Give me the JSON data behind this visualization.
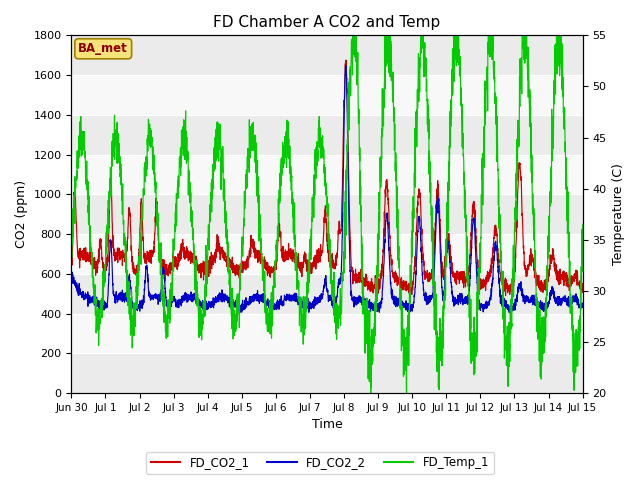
{
  "title": "FD Chamber A CO2 and Temp",
  "xlabel": "Time",
  "ylabel_left": "CO2 (ppm)",
  "ylabel_right": "Temperature (C)",
  "co2_ylim": [
    0,
    1800
  ],
  "temp_ylim": [
    20,
    55
  ],
  "annotation_text": "BA_met",
  "legend_labels": [
    "FD_CO2_1",
    "FD_CO2_2",
    "FD_Temp_1"
  ],
  "legend_colors": [
    "#cc0000",
    "#0000cc",
    "#00cc00"
  ],
  "bg_bands": [
    {
      "ymin": 0,
      "ymax": 200,
      "color": "#ebebeb"
    },
    {
      "ymin": 200,
      "ymax": 400,
      "color": "#f8f8f8"
    },
    {
      "ymin": 400,
      "ymax": 600,
      "color": "#ebebeb"
    },
    {
      "ymin": 600,
      "ymax": 800,
      "color": "#f8f8f8"
    },
    {
      "ymin": 800,
      "ymax": 1000,
      "color": "#ebebeb"
    },
    {
      "ymin": 1000,
      "ymax": 1200,
      "color": "#f8f8f8"
    },
    {
      "ymin": 1200,
      "ymax": 1400,
      "color": "#ebebeb"
    },
    {
      "ymin": 1400,
      "ymax": 1600,
      "color": "#f8f8f8"
    },
    {
      "ymin": 1600,
      "ymax": 1800,
      "color": "#ebebeb"
    }
  ]
}
